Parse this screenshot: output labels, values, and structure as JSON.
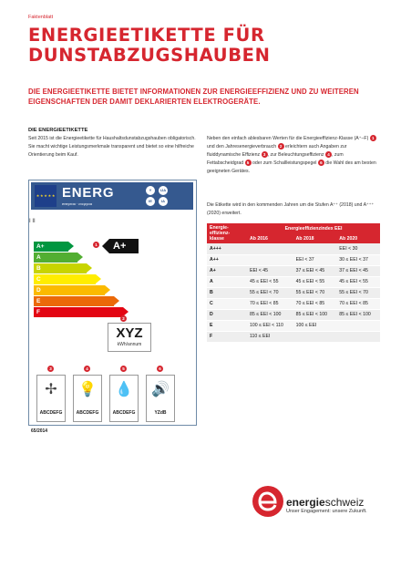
{
  "header": {
    "kicker": "Faktenblatt",
    "title": "Energieetikette für Dunstabzugshauben",
    "lead": "Die Energieetikette bietet Informationen zur Energieeffizienz und zu weiteren Eigenschaften der damit deklarierten Elektrogeräte."
  },
  "section": {
    "heading": "DIE ENERGIEETIKETTE",
    "para1": "Seit 2015 ist die Energieetikette für Haushaltsdunstabzugshauben obligatorisch. Sie macht wichtige Leistungsmerkmale transparent und bietet so eine hilfreiche Orientierung beim Kauf.",
    "para2": {
      "t1": "Neben den einfach ablesbaren Werten für die Energieeffizienz-Klasse (A⁺–F)",
      "d1": "1",
      "t2": "und den Jahresenergieverbrauch",
      "d2": "2",
      "t3": "erleichtern auch Angaben zur fluiddynamische Effizienz",
      "d3": "3",
      "t4": ", zur Beleuchtungseffizienz",
      "d4": "4",
      "t5": ", zum Fettabscheidgrad",
      "d5": "5",
      "t6": "oder zum Schallleistungspegel",
      "d6": "6",
      "t7": "die Wahl des am besten geeigneten Gerätes."
    },
    "para3": "Die Etikette wird in den kommenden Jahren um die Stufen A⁺⁺ (2018) und A⁺⁺⁺ (2020) erweitert."
  },
  "label": {
    "eu_stars": "★ ★ ★ ★ ★",
    "energ": "ENERG",
    "sub": "енергия · ενεργεια",
    "badges": [
      "IJA",
      "IE",
      "IA",
      "Y"
    ],
    "marks": "I          II",
    "classes": [
      {
        "name": "A+",
        "color": "#009640",
        "width": 38
      },
      {
        "name": "A",
        "color": "#52ae32",
        "width": 48
      },
      {
        "name": "B",
        "color": "#c8d400",
        "width": 58
      },
      {
        "name": "C",
        "color": "#ffed00",
        "width": 68
      },
      {
        "name": "D",
        "color": "#fbba00",
        "width": 78
      },
      {
        "name": "E",
        "color": "#eb6909",
        "width": 88
      },
      {
        "name": "F",
        "color": "#e30613",
        "width": 98
      }
    ],
    "rating": "A+",
    "xyz": "XYZ",
    "kwh": "kWh/annum",
    "icons": [
      {
        "num": "3",
        "glyph": "✢",
        "cls": "ABCDEFG"
      },
      {
        "num": "4",
        "glyph": "💡",
        "cls": "ABCDEFG"
      },
      {
        "num": "5",
        "glyph": "💧",
        "cls": "ABCDEFG"
      },
      {
        "num": "6",
        "glyph": "🔊",
        "cls": "YZdB"
      }
    ],
    "code": "65/2014",
    "dot1": "1",
    "dot2": "2"
  },
  "table": {
    "head_class": "Energie-effizienz-klasse",
    "head_index": "Energieeffizienzindex EEI",
    "years": [
      "Ab 2016",
      "Ab 2018",
      "Ab 2020"
    ],
    "rows": [
      {
        "cls": "A+++",
        "v": [
          "",
          "",
          "EEI < 30"
        ]
      },
      {
        "cls": "A++",
        "v": [
          "",
          "EEI < 37",
          "30 ≤ EEI < 37"
        ]
      },
      {
        "cls": "A+",
        "v": [
          "EEI < 45",
          "37 ≤ EEI < 45",
          "37 ≤ EEI < 45"
        ]
      },
      {
        "cls": "A",
        "v": [
          "45 ≤ EEI < 55",
          "45 ≤ EEI < 55",
          "45 ≤ EEI < 55"
        ]
      },
      {
        "cls": "B",
        "v": [
          "55 ≤ EEI < 70",
          "55 ≤ EEI < 70",
          "55 ≤ EEI < 70"
        ]
      },
      {
        "cls": "C",
        "v": [
          "70 ≤ EEI < 85",
          "70 ≤ EEI < 85",
          "70 ≤ EEI < 85"
        ]
      },
      {
        "cls": "D",
        "v": [
          "85 ≤ EEI < 100",
          "85 ≤ EEI < 100",
          "85 ≤ EEI < 100"
        ]
      },
      {
        "cls": "E",
        "v": [
          "100 ≤ EEI < 110",
          "100 ≤ EEI",
          ""
        ]
      },
      {
        "cls": "F",
        "v": [
          "110 ≤ EEI",
          "",
          ""
        ]
      }
    ]
  },
  "logo": {
    "name_a": "energie",
    "name_b": "schweiz",
    "tagline": "Unser Engagement: unsere Zukunft."
  },
  "colors": {
    "accent": "#d6262f",
    "label_blue": "#35598f"
  }
}
